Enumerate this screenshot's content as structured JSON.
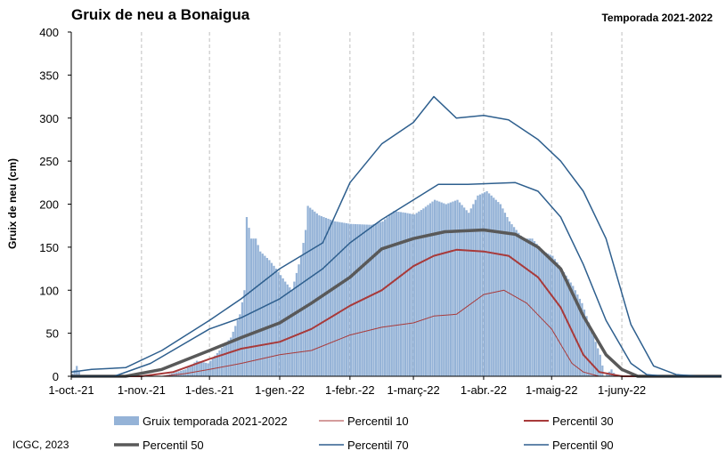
{
  "chart_data": {
    "type": "bar",
    "title": "Gruix de neu a Bonaigua",
    "subtitle": "Temporada 2021-2022",
    "ylabel": "Gruix de neu (cm)",
    "xlabel": "",
    "ylim": [
      0,
      400
    ],
    "yticks": [
      0,
      50,
      100,
      150,
      200,
      250,
      300,
      350,
      400
    ],
    "xlim": [
      "2021-10-01",
      "2022-07-15"
    ],
    "xticks": [
      {
        "date": "2021-10-01",
        "label": "1-oct.-21"
      },
      {
        "date": "2021-11-01",
        "label": "1-nov.-21"
      },
      {
        "date": "2021-12-01",
        "label": "1-des.-21"
      },
      {
        "date": "2022-01-01",
        "label": "1-gen.-22"
      },
      {
        "date": "2022-02-01",
        "label": "1-febr.-22"
      },
      {
        "date": "2022-03-01",
        "label": "1-març-22"
      },
      {
        "date": "2022-04-01",
        "label": "1-abr.-22"
      },
      {
        "date": "2022-05-01",
        "label": "1-maig-22"
      },
      {
        "date": "2022-06-01",
        "label": "1-juny-22"
      }
    ],
    "grid": "vertical-dashed",
    "legend_position": "bottom",
    "series": [
      {
        "name": "Gruix temporada 2021-2022",
        "kind": "bars",
        "color": "#95b3d7",
        "points": [
          [
            "2021-10-01",
            3
          ],
          [
            "2021-10-03",
            12
          ],
          [
            "2021-10-05",
            0
          ],
          [
            "2021-11-10",
            0
          ],
          [
            "2021-11-20",
            8
          ],
          [
            "2021-11-25",
            18
          ],
          [
            "2021-11-30",
            15
          ],
          [
            "2021-12-05",
            30
          ],
          [
            "2021-12-10",
            45
          ],
          [
            "2021-12-14",
            72
          ],
          [
            "2021-12-16",
            100
          ],
          [
            "2021-12-17",
            185
          ],
          [
            "2021-12-19",
            160
          ],
          [
            "2021-12-21",
            160
          ],
          [
            "2021-12-23",
            145
          ],
          [
            "2021-12-27",
            135
          ],
          [
            "2021-12-30",
            125
          ],
          [
            "2022-01-03",
            110
          ],
          [
            "2022-01-06",
            100
          ],
          [
            "2022-01-08",
            120
          ],
          [
            "2022-01-10",
            140
          ],
          [
            "2022-01-12",
            170
          ],
          [
            "2022-01-13",
            198
          ],
          [
            "2022-01-18",
            187
          ],
          [
            "2022-01-25",
            180
          ],
          [
            "2022-02-01",
            177
          ],
          [
            "2022-02-10",
            176
          ],
          [
            "2022-02-15",
            180
          ],
          [
            "2022-02-20",
            192
          ],
          [
            "2022-02-25",
            190
          ],
          [
            "2022-03-01",
            188
          ],
          [
            "2022-03-05",
            195
          ],
          [
            "2022-03-10",
            205
          ],
          [
            "2022-03-15",
            200
          ],
          [
            "2022-03-20",
            205
          ],
          [
            "2022-03-25",
            190
          ],
          [
            "2022-03-29",
            210
          ],
          [
            "2022-04-02",
            215
          ],
          [
            "2022-04-08",
            200
          ],
          [
            "2022-04-12",
            180
          ],
          [
            "2022-04-18",
            160
          ],
          [
            "2022-04-22",
            160
          ],
          [
            "2022-04-27",
            145
          ],
          [
            "2022-05-01",
            140
          ],
          [
            "2022-05-05",
            125
          ],
          [
            "2022-05-10",
            105
          ],
          [
            "2022-05-14",
            85
          ],
          [
            "2022-05-18",
            55
          ],
          [
            "2022-05-22",
            25
          ],
          [
            "2022-05-24",
            0
          ],
          [
            "2022-05-27",
            8
          ],
          [
            "2022-05-29",
            0
          ]
        ]
      },
      {
        "name": "Percentil 10",
        "kind": "line",
        "color": "#a83a3a",
        "width": 1,
        "points": [
          [
            "2021-10-01",
            0
          ],
          [
            "2021-11-10",
            0
          ],
          [
            "2021-11-20",
            3
          ],
          [
            "2021-12-01",
            8
          ],
          [
            "2021-12-15",
            15
          ],
          [
            "2022-01-01",
            25
          ],
          [
            "2022-01-15",
            30
          ],
          [
            "2022-02-01",
            48
          ],
          [
            "2022-02-15",
            57
          ],
          [
            "2022-03-01",
            62
          ],
          [
            "2022-03-10",
            70
          ],
          [
            "2022-03-20",
            72
          ],
          [
            "2022-04-01",
            95
          ],
          [
            "2022-04-10",
            100
          ],
          [
            "2022-04-20",
            85
          ],
          [
            "2022-05-01",
            55
          ],
          [
            "2022-05-10",
            15
          ],
          [
            "2022-05-15",
            5
          ],
          [
            "2022-05-22",
            0
          ],
          [
            "2022-07-15",
            0
          ]
        ]
      },
      {
        "name": "Percentil 30",
        "kind": "line",
        "color": "#a83a3a",
        "width": 2,
        "points": [
          [
            "2021-10-01",
            0
          ],
          [
            "2021-11-01",
            0
          ],
          [
            "2021-11-15",
            5
          ],
          [
            "2021-12-01",
            20
          ],
          [
            "2021-12-15",
            32
          ],
          [
            "2022-01-01",
            40
          ],
          [
            "2022-01-15",
            55
          ],
          [
            "2022-02-01",
            82
          ],
          [
            "2022-02-15",
            100
          ],
          [
            "2022-03-01",
            128
          ],
          [
            "2022-03-10",
            140
          ],
          [
            "2022-03-20",
            147
          ],
          [
            "2022-04-01",
            145
          ],
          [
            "2022-04-12",
            140
          ],
          [
            "2022-04-25",
            115
          ],
          [
            "2022-05-05",
            80
          ],
          [
            "2022-05-15",
            25
          ],
          [
            "2022-05-22",
            5
          ],
          [
            "2022-06-01",
            0
          ],
          [
            "2022-07-15",
            0
          ]
        ]
      },
      {
        "name": "Percentil 50",
        "kind": "line",
        "color": "#595959",
        "width": 3.5,
        "points": [
          [
            "2021-10-01",
            0
          ],
          [
            "2021-10-25",
            0
          ],
          [
            "2021-11-10",
            8
          ],
          [
            "2021-12-01",
            30
          ],
          [
            "2021-12-15",
            45
          ],
          [
            "2022-01-01",
            62
          ],
          [
            "2022-01-15",
            85
          ],
          [
            "2022-02-01",
            115
          ],
          [
            "2022-02-15",
            148
          ],
          [
            "2022-03-01",
            160
          ],
          [
            "2022-03-15",
            168
          ],
          [
            "2022-04-01",
            170
          ],
          [
            "2022-04-15",
            165
          ],
          [
            "2022-04-25",
            150
          ],
          [
            "2022-05-05",
            125
          ],
          [
            "2022-05-15",
            70
          ],
          [
            "2022-05-25",
            25
          ],
          [
            "2022-06-01",
            8
          ],
          [
            "2022-06-08",
            0
          ],
          [
            "2022-07-15",
            0
          ]
        ]
      },
      {
        "name": "Percentil 70",
        "kind": "line",
        "color": "#2e5f8e",
        "width": 1.5,
        "points": [
          [
            "2021-10-01",
            0
          ],
          [
            "2021-10-20",
            0
          ],
          [
            "2021-11-05",
            15
          ],
          [
            "2021-12-01",
            55
          ],
          [
            "2021-12-15",
            68
          ],
          [
            "2022-01-01",
            90
          ],
          [
            "2022-01-20",
            125
          ],
          [
            "2022-02-01",
            155
          ],
          [
            "2022-02-15",
            182
          ],
          [
            "2022-03-01",
            205
          ],
          [
            "2022-03-12",
            223
          ],
          [
            "2022-03-25",
            223
          ],
          [
            "2022-04-15",
            225
          ],
          [
            "2022-04-25",
            215
          ],
          [
            "2022-05-05",
            185
          ],
          [
            "2022-05-15",
            130
          ],
          [
            "2022-05-25",
            65
          ],
          [
            "2022-06-05",
            15
          ],
          [
            "2022-06-12",
            2
          ],
          [
            "2022-06-20",
            0
          ],
          [
            "2022-07-15",
            0
          ]
        ]
      },
      {
        "name": "Percentil 90",
        "kind": "line",
        "color": "#2e5f8e",
        "width": 1.5,
        "points": [
          [
            "2021-10-01",
            5
          ],
          [
            "2021-10-10",
            8
          ],
          [
            "2021-10-25",
            10
          ],
          [
            "2021-11-10",
            30
          ],
          [
            "2021-12-01",
            65
          ],
          [
            "2021-12-15",
            90
          ],
          [
            "2022-01-01",
            125
          ],
          [
            "2022-01-20",
            155
          ],
          [
            "2022-02-01",
            225
          ],
          [
            "2022-02-15",
            270
          ],
          [
            "2022-03-01",
            295
          ],
          [
            "2022-03-10",
            325
          ],
          [
            "2022-03-20",
            300
          ],
          [
            "2022-04-01",
            303
          ],
          [
            "2022-04-12",
            298
          ],
          [
            "2022-04-25",
            275
          ],
          [
            "2022-05-05",
            250
          ],
          [
            "2022-05-15",
            215
          ],
          [
            "2022-05-25",
            160
          ],
          [
            "2022-06-05",
            60
          ],
          [
            "2022-06-15",
            12
          ],
          [
            "2022-06-25",
            2
          ],
          [
            "2022-07-05",
            0
          ],
          [
            "2022-07-15",
            0
          ]
        ]
      }
    ]
  },
  "footer": {
    "credit": "ICGC, 2023"
  }
}
